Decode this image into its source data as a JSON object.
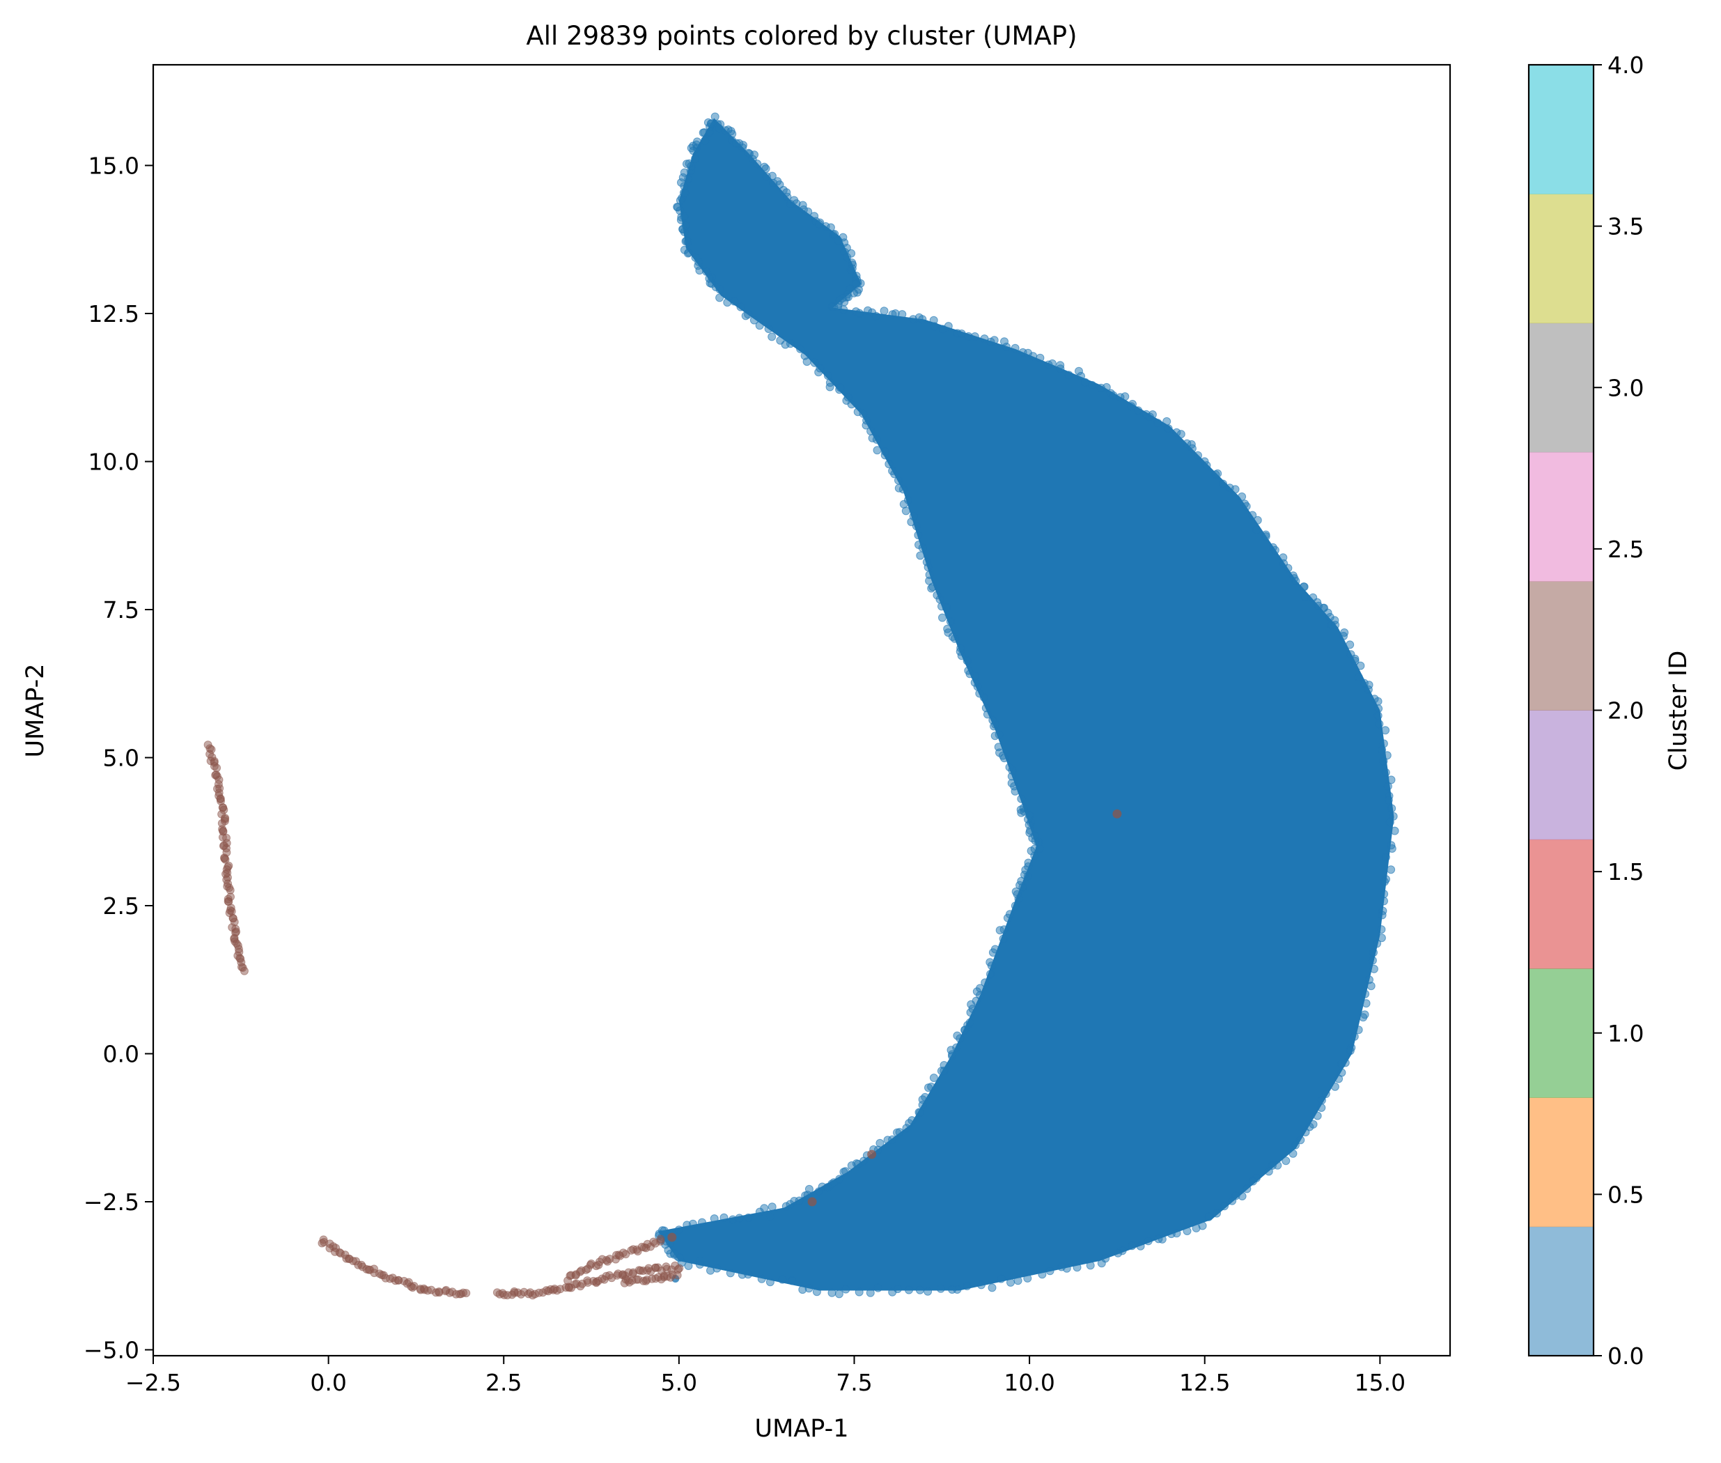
{
  "chart_data": {
    "type": "scatter",
    "title": "All 29839 points colored by cluster (UMAP)",
    "xlabel": "UMAP-1",
    "ylabel": "UMAP-2",
    "xlim": [
      -2.5,
      16.0
    ],
    "ylim": [
      -5.1,
      16.7
    ],
    "x_ticks": [
      -2.5,
      0.0,
      2.5,
      5.0,
      7.5,
      10.0,
      12.5,
      15.0
    ],
    "x_tick_labels": [
      "−2.5",
      "0.0",
      "2.5",
      "5.0",
      "7.5",
      "10.0",
      "12.5",
      "15.0"
    ],
    "y_ticks": [
      -5.0,
      -2.5,
      0.0,
      2.5,
      5.0,
      7.5,
      10.0,
      12.5,
      15.0
    ],
    "y_tick_labels": [
      "−5.0",
      "−2.5",
      "0.0",
      "2.5",
      "5.0",
      "7.5",
      "10.0",
      "12.5",
      "15.0"
    ],
    "grid": false,
    "point_alpha": 0.5,
    "series": [
      {
        "cluster": 0,
        "color": "#1f77b4",
        "outline": [
          [
            5.5,
            15.8
          ],
          [
            6.0,
            15.2
          ],
          [
            6.6,
            14.4
          ],
          [
            7.3,
            13.8
          ],
          [
            7.6,
            13.0
          ],
          [
            7.2,
            12.6
          ],
          [
            8.5,
            12.4
          ],
          [
            9.8,
            11.9
          ],
          [
            11.0,
            11.3
          ],
          [
            12.0,
            10.6
          ],
          [
            13.0,
            9.4
          ],
          [
            13.8,
            8.0
          ],
          [
            14.4,
            7.2
          ],
          [
            15.0,
            5.8
          ],
          [
            15.2,
            4.0
          ],
          [
            15.0,
            2.0
          ],
          [
            14.6,
            0.0
          ],
          [
            13.8,
            -1.6
          ],
          [
            12.6,
            -2.8
          ],
          [
            11.0,
            -3.5
          ],
          [
            9.0,
            -4.0
          ],
          [
            7.0,
            -4.0
          ],
          [
            5.0,
            -3.5
          ],
          [
            4.7,
            -3.0
          ],
          [
            6.5,
            -2.6
          ],
          [
            7.4,
            -2.0
          ],
          [
            8.3,
            -1.2
          ],
          [
            8.9,
            0.0
          ],
          [
            9.3,
            1.0
          ],
          [
            9.8,
            2.6
          ],
          [
            10.1,
            3.5
          ],
          [
            9.9,
            4.2
          ],
          [
            9.5,
            5.5
          ],
          [
            9.0,
            6.8
          ],
          [
            8.6,
            8.0
          ],
          [
            8.2,
            9.5
          ],
          [
            7.6,
            10.8
          ],
          [
            6.8,
            11.8
          ],
          [
            5.6,
            12.8
          ],
          [
            5.1,
            13.6
          ],
          [
            5.0,
            14.4
          ],
          [
            5.2,
            15.2
          ]
        ],
        "extra_points": [
          [
            4.95,
            -3.8
          ],
          [
            5.3,
            -3.5
          ],
          [
            6.3,
            -2.75
          ]
        ]
      },
      {
        "cluster": 2,
        "color": "#8c564b",
        "arcs": [
          [
            [
              -1.7,
              5.2
            ],
            [
              -1.6,
              4.7
            ],
            [
              -1.5,
              4.0
            ],
            [
              -1.45,
              3.2
            ],
            [
              -1.4,
              2.4
            ],
            [
              -1.3,
              1.8
            ],
            [
              -1.2,
              1.35
            ]
          ],
          [
            [
              -0.1,
              -3.15
            ],
            [
              0.3,
              -3.5
            ],
            [
              0.9,
              -3.8
            ],
            [
              1.4,
              -4.0
            ],
            [
              2.0,
              -4.05
            ]
          ],
          [
            [
              2.4,
              -4.05
            ],
            [
              3.0,
              -4.05
            ],
            [
              3.6,
              -3.9
            ],
            [
              4.1,
              -3.75
            ],
            [
              4.6,
              -3.65
            ],
            [
              5.05,
              -3.6
            ]
          ],
          [
            [
              3.4,
              -3.8
            ],
            [
              3.8,
              -3.55
            ],
            [
              4.3,
              -3.35
            ],
            [
              4.8,
              -3.15
            ]
          ],
          [
            [
              4.2,
              -3.85
            ],
            [
              4.6,
              -3.8
            ],
            [
              5.0,
              -3.75
            ]
          ]
        ],
        "extra_points": [
          [
            7.75,
            -1.7
          ],
          [
            11.25,
            4.05
          ],
          [
            6.9,
            -2.5
          ],
          [
            4.9,
            -3.1
          ]
        ]
      }
    ],
    "colorbar": {
      "label": "Cluster ID",
      "range": [
        0.0,
        4.0
      ],
      "ticks": [
        0.0,
        0.5,
        1.0,
        1.5,
        2.0,
        2.5,
        3.0,
        3.5,
        4.0
      ],
      "tick_labels": [
        "0.0",
        "0.5",
        "1.0",
        "1.5",
        "2.0",
        "2.5",
        "3.0",
        "3.5",
        "4.0"
      ],
      "colors": [
        "#1f77b4",
        "#ff7f0e",
        "#2ca02c",
        "#d62728",
        "#9467bd",
        "#8c564b",
        "#e377c2",
        "#7f7f7f",
        "#bcbd22",
        "#17becf"
      ],
      "alpha": 0.5
    }
  }
}
